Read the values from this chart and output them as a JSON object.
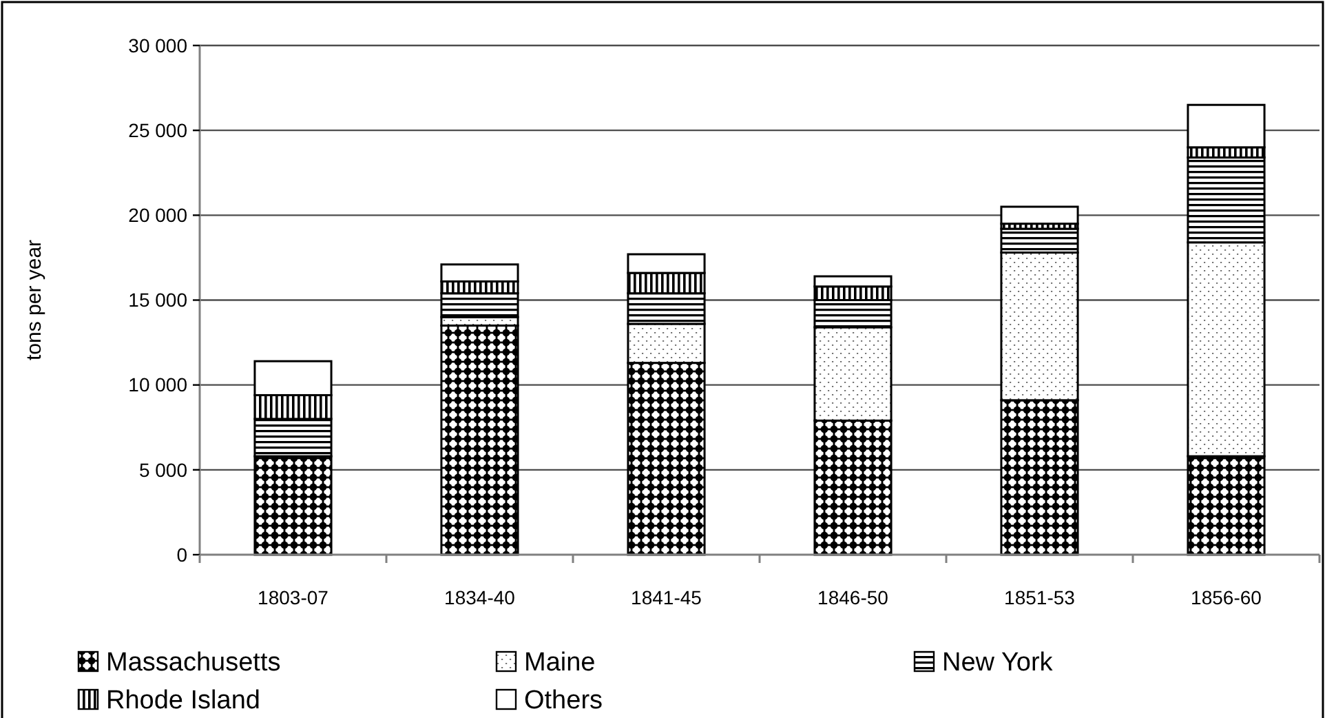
{
  "chart_data": {
    "type": "bar",
    "stacked": true,
    "ylabel": "tons per year",
    "categories": [
      "1803-07",
      "1834-40",
      "1841-45",
      "1846-50",
      "1851-53",
      "1856-60"
    ],
    "series": [
      {
        "name": "Massachusetts",
        "color": "#000000",
        "values": [
          5800,
          13500,
          11300,
          7900,
          9100,
          5800
        ]
      },
      {
        "name": "Maine",
        "color": "#000000",
        "values": [
          null,
          500,
          2300,
          5500,
          8700,
          12600
        ]
      },
      {
        "name": "New York",
        "color": "#000000",
        "values": [
          2200,
          1400,
          1800,
          1600,
          1400,
          5000
        ]
      },
      {
        "name": "Rhode Island",
        "color": "#000000",
        "values": [
          1400,
          700,
          1200,
          800,
          300,
          600
        ]
      },
      {
        "name": "Others",
        "color": "#000000",
        "values": [
          2000,
          1000,
          1100,
          600,
          1000,
          2500
        ]
      }
    ],
    "ylim": [
      0,
      30000
    ],
    "yticks": [
      0,
      {
        "value": 5000,
        "label": "5 000"
      },
      {
        "value": 10000,
        "label": "10 000"
      },
      {
        "value": 15000,
        "label": "15 000"
      },
      {
        "value": 20000,
        "label": "20 000"
      },
      {
        "value": 25000,
        "label": "25 000"
      },
      {
        "value": 30000,
        "label": "30 000"
      }
    ],
    "grid": "y",
    "legend": "bottom"
  }
}
